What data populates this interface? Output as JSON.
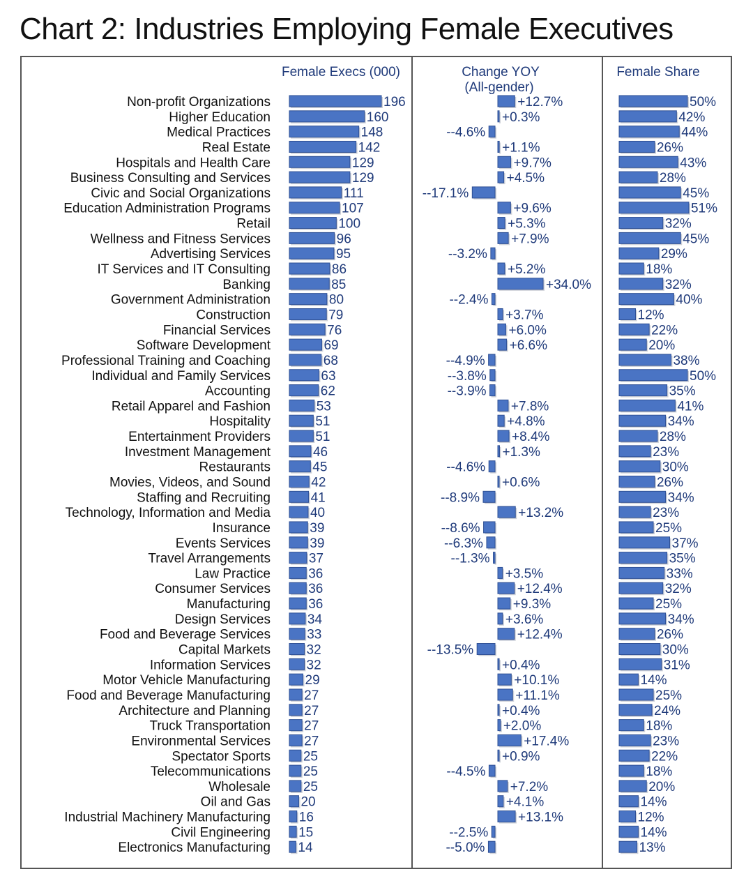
{
  "chart_data": {
    "type": "bar",
    "title": "Chart 2: Industries Employing Female Executives",
    "panel_headers": {
      "execs": "Female Execs (000)",
      "change": "Change YOY",
      "change_sub": "(All-gender)",
      "share": "Female Share"
    },
    "categories": [
      "Non-profit Organizations",
      "Higher Education",
      "Medical Practices",
      "Real Estate",
      "Hospitals and Health Care",
      "Business Consulting and Services",
      "Civic and Social Organizations",
      "Education Administration Programs",
      "Retail",
      "Wellness and Fitness Services",
      "Advertising Services",
      "IT Services and IT Consulting",
      "Banking",
      "Government Administration",
      "Construction",
      "Financial Services",
      "Software Development",
      "Professional Training and Coaching",
      "Individual and Family Services",
      "Accounting",
      "Retail Apparel and Fashion",
      "Hospitality",
      "Entertainment Providers",
      "Investment Management",
      "Restaurants",
      "Movies, Videos, and Sound",
      "Staffing and Recruiting",
      "Technology, Information and Media",
      "Insurance",
      "Events Services",
      "Travel Arrangements",
      "Law Practice",
      "Consumer Services",
      "Manufacturing",
      "Design Services",
      "Food and Beverage Services",
      "Capital Markets",
      "Information Services",
      "Motor Vehicle Manufacturing",
      "Food and Beverage Manufacturing",
      "Architecture and Planning",
      "Truck Transportation",
      "Environmental Services",
      "Spectator Sports",
      "Telecommunications",
      "Wholesale",
      "Oil and Gas",
      "Industrial Machinery Manufacturing",
      "Civil Engineering",
      "Electronics Manufacturing"
    ],
    "series": [
      {
        "name": "Female Execs (000)",
        "values": [
          196,
          160,
          148,
          142,
          129,
          129,
          111,
          107,
          100,
          96,
          95,
          86,
          85,
          80,
          79,
          76,
          69,
          68,
          63,
          62,
          53,
          51,
          51,
          46,
          45,
          42,
          41,
          40,
          39,
          39,
          37,
          36,
          36,
          36,
          34,
          33,
          32,
          32,
          29,
          27,
          27,
          27,
          27,
          25,
          25,
          25,
          20,
          16,
          15,
          14
        ],
        "labels": [
          "196",
          "160",
          "148",
          "142",
          "129",
          "129",
          "111",
          "107",
          "100",
          "96",
          "95",
          "86",
          "85",
          "80",
          "79",
          "76",
          "69",
          "68",
          "63",
          "62",
          "53",
          "51",
          "51",
          "46",
          "45",
          "42",
          "41",
          "40",
          "39",
          "39",
          "37",
          "36",
          "36",
          "36",
          "34",
          "33",
          "32",
          "32",
          "29",
          "27",
          "27",
          "27",
          "27",
          "25",
          "25",
          "25",
          "20",
          "16",
          "15",
          "14"
        ]
      },
      {
        "name": "Change YOY (All-gender)",
        "values": [
          12.7,
          0.3,
          -4.6,
          1.1,
          9.7,
          4.5,
          -17.1,
          9.6,
          5.3,
          7.9,
          -3.2,
          5.2,
          34.0,
          -2.4,
          3.7,
          6.0,
          6.6,
          -4.9,
          -3.8,
          -3.9,
          7.8,
          4.8,
          8.4,
          1.3,
          -4.6,
          0.6,
          -8.9,
          13.2,
          -8.6,
          -6.3,
          -1.3,
          3.5,
          12.4,
          9.3,
          3.6,
          12.4,
          -13.5,
          0.4,
          10.1,
          11.1,
          0.4,
          2.0,
          17.4,
          0.9,
          -4.5,
          7.2,
          4.1,
          13.1,
          -2.5,
          -5.0
        ],
        "labels": [
          "+12.7%",
          "+0.3%",
          "--4.6%",
          "+1.1%",
          "+9.7%",
          "+4.5%",
          "--17.1%",
          "+9.6%",
          "+5.3%",
          "+7.9%",
          "--3.2%",
          "+5.2%",
          "+34.0%",
          "--2.4%",
          "+3.7%",
          "+6.0%",
          "+6.6%",
          "--4.9%",
          "--3.8%",
          "--3.9%",
          "+7.8%",
          "+4.8%",
          "+8.4%",
          "+1.3%",
          "--4.6%",
          "+0.6%",
          "--8.9%",
          "+13.2%",
          "--8.6%",
          "--6.3%",
          "--1.3%",
          "+3.5%",
          "+12.4%",
          "+9.3%",
          "+3.6%",
          "+12.4%",
          "--13.5%",
          "+0.4%",
          "+10.1%",
          "+11.1%",
          "+0.4%",
          "+2.0%",
          "+17.4%",
          "+0.9%",
          "--4.5%",
          "+7.2%",
          "+4.1%",
          "+13.1%",
          "--2.5%",
          "--5.0%"
        ]
      },
      {
        "name": "Female Share",
        "values": [
          50,
          42,
          44,
          26,
          43,
          28,
          45,
          51,
          32,
          45,
          29,
          18,
          32,
          40,
          12,
          22,
          20,
          38,
          50,
          35,
          41,
          34,
          28,
          23,
          30,
          26,
          34,
          23,
          25,
          37,
          35,
          33,
          32,
          25,
          34,
          26,
          30,
          31,
          14,
          25,
          24,
          18,
          23,
          22,
          18,
          20,
          14,
          12,
          14,
          13
        ],
        "labels": [
          "50%",
          "42%",
          "44%",
          "26%",
          "43%",
          "28%",
          "45%",
          "51%",
          "32%",
          "45%",
          "29%",
          "18%",
          "32%",
          "40%",
          "12%",
          "22%",
          "20%",
          "38%",
          "50%",
          "35%",
          "41%",
          "34%",
          "28%",
          "23%",
          "30%",
          "26%",
          "34%",
          "23%",
          "25%",
          "37%",
          "35%",
          "33%",
          "32%",
          "25%",
          "34%",
          "26%",
          "30%",
          "31%",
          "14%",
          "25%",
          "24%",
          "18%",
          "23%",
          "22%",
          "18%",
          "20%",
          "14%",
          "12%",
          "14%",
          "13%"
        ]
      }
    ],
    "colors": {
      "bar": "#4a74c4",
      "bar_edge": "#2e4f94",
      "label": "#1f3a7a",
      "frame": "#555555"
    },
    "grid": false,
    "legend": "none"
  }
}
